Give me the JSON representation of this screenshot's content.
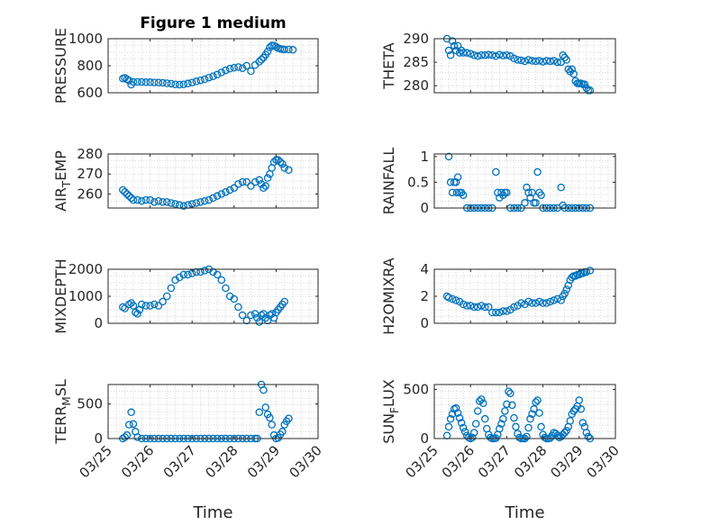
{
  "figure": {
    "marker_color": "#0072BD",
    "axis_color": "#262626",
    "grid_color": "#d9d9d9"
  },
  "chart_data": [
    {
      "type": "scatter",
      "title": "Figure 1 medium",
      "ylabel": [
        "PRESSURE",
        ""
      ],
      "xlabel": "",
      "ylim": [
        600,
        1000
      ],
      "yticks": [
        600,
        800,
        1000
      ],
      "xlim": [
        0,
        5
      ],
      "xticks": [
        "03/25",
        "03/26",
        "03/27",
        "03/28",
        "03/29",
        "03/30"
      ],
      "grid": true,
      "x": [
        0.35,
        0.4,
        0.45,
        0.5,
        0.55,
        0.6,
        0.7,
        0.8,
        0.9,
        1.0,
        1.1,
        1.2,
        1.3,
        1.4,
        1.5,
        1.6,
        1.7,
        1.8,
        1.9,
        2.0,
        2.1,
        2.2,
        2.3,
        2.4,
        2.5,
        2.6,
        2.7,
        2.8,
        2.9,
        3.0,
        3.1,
        3.2,
        3.3,
        3.4,
        3.5,
        3.6,
        3.65,
        3.7,
        3.75,
        3.8,
        3.85,
        3.9,
        3.95,
        4.0,
        4.05,
        4.1,
        4.15,
        4.2,
        4.3,
        4.4
      ],
      "y": [
        705,
        710,
        700,
        690,
        660,
        680,
        680,
        680,
        678,
        678,
        676,
        675,
        673,
        670,
        667,
        662,
        660,
        662,
        668,
        675,
        684,
        692,
        700,
        712,
        722,
        735,
        750,
        766,
        778,
        785,
        790,
        782,
        800,
        760,
        805,
        830,
        845,
        860,
        882,
        905,
        935,
        950,
        948,
        940,
        930,
        925,
        922,
        920,
        920,
        918
      ]
    },
    {
      "type": "scatter",
      "ylabel": [
        "THETA",
        ""
      ],
      "xlabel": "",
      "ylim": [
        278.5,
        290
      ],
      "yticks": [
        280,
        285,
        290
      ],
      "xlim": [
        0,
        5
      ],
      "xticks": [
        "03/25",
        "03/26",
        "03/27",
        "03/28",
        "03/29",
        "03/30"
      ],
      "grid": true,
      "x": [
        0.35,
        0.4,
        0.45,
        0.5,
        0.55,
        0.6,
        0.65,
        0.7,
        0.75,
        0.8,
        0.9,
        1.0,
        1.1,
        1.2,
        1.3,
        1.4,
        1.5,
        1.6,
        1.7,
        1.8,
        1.9,
        2.0,
        2.1,
        2.2,
        2.3,
        2.4,
        2.5,
        2.6,
        2.7,
        2.8,
        2.9,
        3.0,
        3.1,
        3.2,
        3.3,
        3.4,
        3.5,
        3.55,
        3.6,
        3.65,
        3.7,
        3.75,
        3.8,
        3.85,
        3.9,
        3.95,
        4.0,
        4.05,
        4.1,
        4.15,
        4.2,
        4.25,
        4.3
      ],
      "y": [
        290,
        287.5,
        286.5,
        289.5,
        288.5,
        287.5,
        288.5,
        287,
        287.5,
        287,
        287,
        286.8,
        286.5,
        286.3,
        286.5,
        286.5,
        286.6,
        286.5,
        286.3,
        286.6,
        286.4,
        286.5,
        286.3,
        285.8,
        285.5,
        285.4,
        285.2,
        285.5,
        285.3,
        285.2,
        285.3,
        285.1,
        285.3,
        285.2,
        285.3,
        285,
        285,
        286.5,
        286,
        285.5,
        283.5,
        283,
        283.5,
        282.5,
        281,
        280.5,
        280.5,
        280.5,
        280.3,
        280.3,
        279.5,
        279,
        279
      ]
    },
    {
      "type": "scatter",
      "ylabel": [
        "AIR",
        "T",
        "EMP"
      ],
      "xlabel": "",
      "ylim": [
        253,
        280
      ],
      "yticks": [
        260,
        270,
        280
      ],
      "xlim": [
        0,
        5
      ],
      "xticks": [
        "03/25",
        "03/26",
        "03/27",
        "03/28",
        "03/29",
        "03/30"
      ],
      "grid": true,
      "x": [
        0.35,
        0.4,
        0.45,
        0.5,
        0.55,
        0.6,
        0.7,
        0.8,
        0.9,
        1.0,
        1.1,
        1.2,
        1.3,
        1.4,
        1.5,
        1.6,
        1.7,
        1.8,
        1.9,
        2.0,
        2.1,
        2.2,
        2.3,
        2.4,
        2.5,
        2.6,
        2.7,
        2.8,
        2.9,
        3.0,
        3.1,
        3.2,
        3.3,
        3.4,
        3.5,
        3.6,
        3.65,
        3.7,
        3.75,
        3.8,
        3.85,
        3.9,
        3.95,
        4.0,
        4.05,
        4.1,
        4.15,
        4.2,
        4.3
      ],
      "y": [
        262,
        261,
        260,
        259,
        258,
        257,
        257,
        256.5,
        257,
        257,
        256,
        256.5,
        256,
        256,
        255.5,
        255,
        254.5,
        254,
        254.5,
        255,
        255.5,
        256,
        256.5,
        257,
        258,
        259,
        260,
        261,
        262,
        263,
        265,
        266,
        266,
        264,
        266,
        267,
        265,
        263,
        264,
        268,
        270,
        273,
        276,
        277,
        277,
        276,
        275,
        273,
        272
      ]
    },
    {
      "type": "scatter",
      "ylabel": [
        "RAINFALL",
        ""
      ],
      "xlabel": "",
      "ylim": [
        0,
        1.05
      ],
      "yticks": [
        0,
        0.5,
        1
      ],
      "ytick_labels": [
        "0",
        "0.5",
        "1"
      ],
      "xlim": [
        0,
        5
      ],
      "xticks": [
        "03/25",
        "03/26",
        "03/27",
        "03/28",
        "03/29",
        "03/30"
      ],
      "grid": true,
      "x": [
        0.4,
        0.45,
        0.5,
        0.55,
        0.6,
        0.62,
        0.65,
        0.7,
        0.75,
        0.8,
        0.9,
        1.0,
        1.1,
        1.2,
        1.3,
        1.4,
        1.5,
        1.6,
        1.7,
        1.75,
        1.8,
        1.85,
        1.9,
        1.95,
        2.0,
        2.1,
        2.2,
        2.3,
        2.4,
        2.5,
        2.55,
        2.6,
        2.65,
        2.7,
        2.75,
        2.8,
        2.85,
        2.9,
        2.95,
        3.0,
        3.1,
        3.2,
        3.3,
        3.4,
        3.5,
        3.55,
        3.6,
        3.7,
        3.8,
        3.9,
        4.0,
        4.1,
        4.2,
        4.3
      ],
      "y": [
        1,
        0.5,
        0.3,
        0.5,
        0.5,
        0.3,
        0.6,
        0.3,
        0.3,
        0.25,
        0,
        0,
        0,
        0,
        0,
        0,
        0,
        0,
        0.7,
        0.3,
        0.2,
        0.3,
        0.25,
        0.3,
        0.3,
        0,
        0,
        0,
        0,
        0.1,
        0.4,
        0.3,
        0.2,
        0.3,
        0.1,
        0.1,
        0.7,
        0.3,
        0.25,
        0,
        0,
        0,
        0,
        0,
        0.4,
        0.05,
        0,
        0,
        0,
        0,
        0,
        0,
        0,
        0
      ]
    },
    {
      "type": "scatter",
      "ylabel": [
        "MIXDEPTH",
        ""
      ],
      "xlabel": "",
      "ylim": [
        0,
        2000
      ],
      "yticks": [
        0,
        1000,
        2000
      ],
      "xlim": [
        0,
        5
      ],
      "xticks": [
        "03/25",
        "03/26",
        "03/27",
        "03/28",
        "03/29",
        "03/30"
      ],
      "grid": true,
      "x": [
        0.35,
        0.4,
        0.5,
        0.55,
        0.6,
        0.65,
        0.7,
        0.75,
        0.8,
        0.9,
        1.0,
        1.1,
        1.2,
        1.3,
        1.4,
        1.5,
        1.6,
        1.7,
        1.8,
        1.9,
        2.0,
        2.1,
        2.2,
        2.3,
        2.4,
        2.5,
        2.6,
        2.7,
        2.8,
        2.9,
        3.0,
        3.1,
        3.2,
        3.3,
        3.4,
        3.5,
        3.55,
        3.6,
        3.65,
        3.7,
        3.75,
        3.8,
        3.85,
        3.9,
        3.95,
        4.0,
        4.05,
        4.1,
        4.15,
        4.2
      ],
      "y": [
        600,
        550,
        700,
        750,
        650,
        400,
        350,
        500,
        700,
        650,
        650,
        700,
        650,
        800,
        1000,
        1300,
        1600,
        1700,
        1800,
        1800,
        1850,
        1900,
        1900,
        1950,
        2000,
        1900,
        1800,
        1600,
        1300,
        1000,
        900,
        600,
        300,
        100,
        300,
        350,
        200,
        50,
        300,
        350,
        200,
        100,
        300,
        350,
        200,
        400,
        500,
        600,
        700,
        800
      ]
    },
    {
      "type": "scatter",
      "ylabel": [
        "H2OMIXRA",
        ""
      ],
      "xlabel": "",
      "ylim": [
        0,
        4
      ],
      "yticks": [
        0,
        2,
        4
      ],
      "xlim": [
        0,
        5
      ],
      "xticks": [
        "03/25",
        "03/26",
        "03/27",
        "03/28",
        "03/29",
        "03/30"
      ],
      "grid": true,
      "x": [
        0.35,
        0.4,
        0.5,
        0.6,
        0.7,
        0.8,
        0.9,
        1.0,
        1.1,
        1.2,
        1.3,
        1.4,
        1.5,
        1.6,
        1.7,
        1.8,
        1.9,
        2.0,
        2.1,
        2.2,
        2.3,
        2.4,
        2.5,
        2.6,
        2.7,
        2.8,
        2.9,
        3.0,
        3.1,
        3.2,
        3.3,
        3.4,
        3.5,
        3.55,
        3.6,
        3.65,
        3.7,
        3.75,
        3.8,
        3.85,
        3.9,
        3.95,
        4.0,
        4.05,
        4.1,
        4.15,
        4.2,
        4.3
      ],
      "y": [
        2,
        1.9,
        1.8,
        1.7,
        1.6,
        1.4,
        1.3,
        1.3,
        1.2,
        1.2,
        1.3,
        1.2,
        1.2,
        0.8,
        0.8,
        0.8,
        0.9,
        0.9,
        1.0,
        1.2,
        1.3,
        1.5,
        1.4,
        1.6,
        1.5,
        1.5,
        1.6,
        1.5,
        1.5,
        1.6,
        1.7,
        1.8,
        1.7,
        2.0,
        2.2,
        2.5,
        2.8,
        3.2,
        3.4,
        3.5,
        3.5,
        3.6,
        3.6,
        3.7,
        3.7,
        3.8,
        3.8,
        3.9
      ]
    },
    {
      "type": "scatter",
      "ylabel": [
        "TERR",
        "M",
        "SL"
      ],
      "xlabel": "Time",
      "ylim": [
        0,
        780
      ],
      "yticks": [
        0,
        500
      ],
      "xlim": [
        0,
        5
      ],
      "xticks": [
        "03/25",
        "03/26",
        "03/27",
        "03/28",
        "03/29",
        "03/30"
      ],
      "grid": true,
      "x": [
        0.35,
        0.4,
        0.45,
        0.5,
        0.55,
        0.6,
        0.65,
        0.7,
        0.8,
        0.9,
        1.0,
        1.1,
        1.2,
        1.3,
        1.4,
        1.5,
        1.6,
        1.7,
        1.8,
        1.9,
        2.0,
        2.1,
        2.2,
        2.3,
        2.4,
        2.5,
        2.6,
        2.7,
        2.8,
        2.9,
        3.0,
        3.1,
        3.2,
        3.3,
        3.4,
        3.5,
        3.55,
        3.6,
        3.65,
        3.7,
        3.75,
        3.8,
        3.85,
        3.9,
        3.95,
        4.0,
        4.05,
        4.1,
        4.15,
        4.2,
        4.25,
        4.3
      ],
      "y": [
        0,
        20,
        50,
        200,
        380,
        210,
        100,
        20,
        0,
        0,
        0,
        0,
        0,
        0,
        0,
        0,
        0,
        0,
        0,
        0,
        0,
        0,
        0,
        0,
        0,
        0,
        0,
        0,
        0,
        0,
        0,
        0,
        0,
        0,
        0,
        0,
        0,
        380,
        780,
        700,
        450,
        350,
        300,
        200,
        50,
        0,
        10,
        60,
        100,
        200,
        250,
        290
      ]
    },
    {
      "type": "scatter",
      "ylabel": [
        "SUN",
        "F",
        "LUX"
      ],
      "xlabel": "Time",
      "ylim": [
        0,
        550
      ],
      "yticks": [
        0,
        500
      ],
      "xlim": [
        0,
        5
      ],
      "xticks": [
        "03/25",
        "03/26",
        "03/27",
        "03/28",
        "03/29",
        "03/30"
      ],
      "grid": true,
      "x": [
        0.35,
        0.4,
        0.45,
        0.5,
        0.55,
        0.6,
        0.65,
        0.7,
        0.75,
        0.8,
        0.85,
        0.9,
        0.95,
        1.0,
        1.05,
        1.1,
        1.15,
        1.2,
        1.25,
        1.3,
        1.35,
        1.4,
        1.45,
        1.5,
        1.55,
        1.6,
        1.65,
        1.7,
        1.75,
        1.8,
        1.85,
        1.9,
        1.95,
        2.0,
        2.05,
        2.1,
        2.15,
        2.2,
        2.25,
        2.3,
        2.35,
        2.4,
        2.45,
        2.5,
        2.55,
        2.6,
        2.65,
        2.7,
        2.75,
        2.8,
        2.85,
        2.9,
        2.95,
        3.0,
        3.05,
        3.1,
        3.15,
        3.2,
        3.25,
        3.3,
        3.35,
        3.4,
        3.45,
        3.5,
        3.55,
        3.6,
        3.65,
        3.7,
        3.75,
        3.8,
        3.85,
        3.9,
        3.95,
        4.0,
        4.05,
        4.1,
        4.15,
        4.2,
        4.25,
        4.3
      ],
      "y": [
        30,
        120,
        200,
        250,
        300,
        310,
        260,
        210,
        160,
        110,
        70,
        30,
        10,
        0,
        10,
        60,
        150,
        280,
        380,
        400,
        360,
        200,
        100,
        40,
        10,
        0,
        0,
        5,
        40,
        100,
        150,
        200,
        280,
        350,
        480,
        460,
        340,
        210,
        120,
        50,
        10,
        0,
        0,
        0,
        20,
        110,
        200,
        250,
        300,
        370,
        390,
        260,
        120,
        40,
        10,
        0,
        0,
        5,
        30,
        60,
        50,
        30,
        10,
        20,
        40,
        60,
        80,
        120,
        180,
        250,
        280,
        300,
        330,
        390,
        300,
        160,
        120,
        60,
        20,
        0
      ]
    }
  ]
}
